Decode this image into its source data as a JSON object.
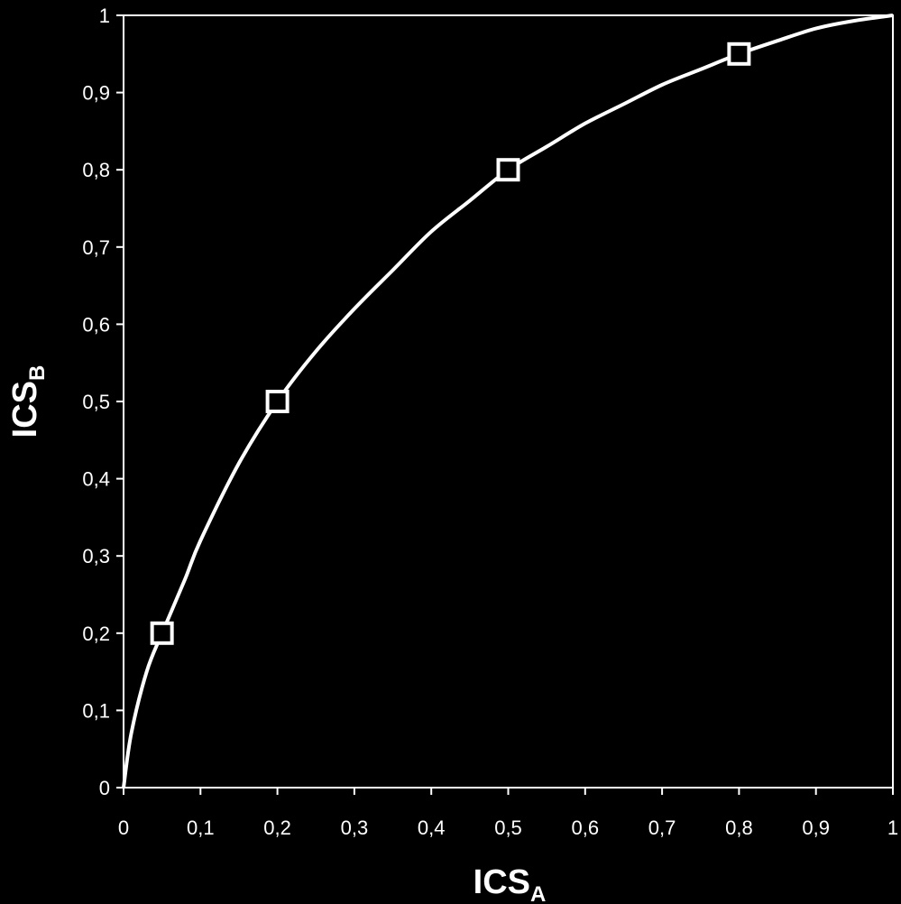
{
  "chart_data": {
    "type": "line",
    "title": "",
    "xlabel": {
      "main": "ICS",
      "sub": "A"
    },
    "ylabel": {
      "main": "ICS",
      "sub": "B"
    },
    "xlim": [
      0,
      1
    ],
    "ylim": [
      0,
      1
    ],
    "x_ticks": [
      "0",
      "0,1",
      "0,2",
      "0,3",
      "0,4",
      "0,5",
      "0,6",
      "0,7",
      "0,8",
      "0,9",
      "1"
    ],
    "y_ticks": [
      "0",
      "0,1",
      "0,2",
      "0,3",
      "0,4",
      "0,5",
      "0,6",
      "0,7",
      "0,8",
      "0,9",
      "1"
    ],
    "grid": false,
    "legend": "none",
    "colors": {
      "background": "#000000",
      "foreground": "#ffffff"
    },
    "series": [
      {
        "style": "curve",
        "x": [
          0,
          0.01,
          0.03,
          0.05,
          0.08,
          0.1,
          0.15,
          0.2,
          0.25,
          0.3,
          0.35,
          0.4,
          0.45,
          0.5,
          0.55,
          0.6,
          0.65,
          0.7,
          0.75,
          0.8,
          0.85,
          0.9,
          0.95,
          1
        ],
        "y": [
          0,
          0.07,
          0.15,
          0.2,
          0.27,
          0.32,
          0.42,
          0.5,
          0.565,
          0.62,
          0.67,
          0.72,
          0.76,
          0.8,
          0.83,
          0.86,
          0.885,
          0.91,
          0.93,
          0.95,
          0.967,
          0.983,
          0.993,
          1
        ]
      },
      {
        "style": "markers",
        "marker": "square",
        "x": [
          0.05,
          0.2,
          0.5,
          0.8
        ],
        "y": [
          0.2,
          0.5,
          0.8,
          0.95
        ]
      }
    ]
  }
}
